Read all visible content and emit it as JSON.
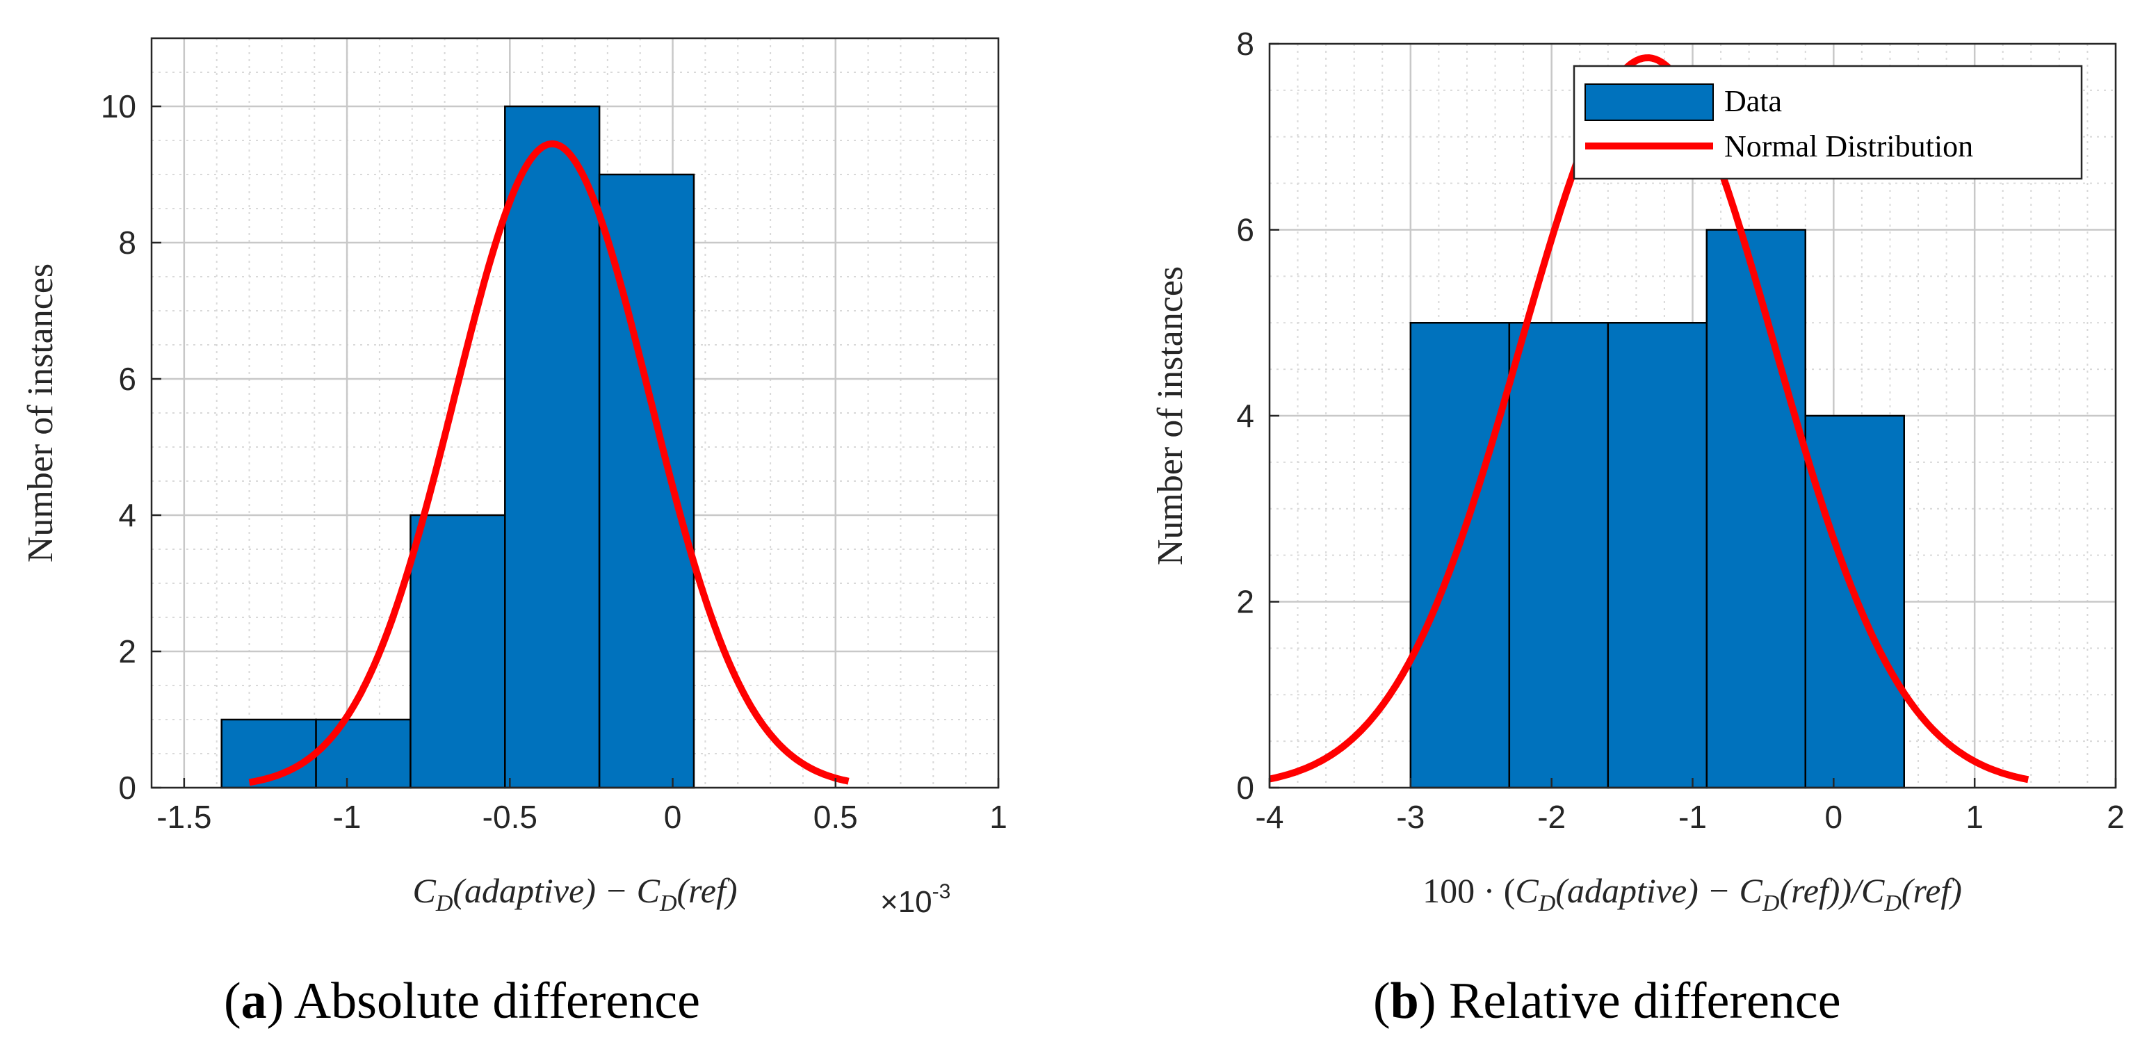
{
  "chart_data": [
    {
      "type": "histogram",
      "ylabel": "Number of instances",
      "xlabel": "C_D(adaptive) − C_D(ref)",
      "x_multiplier": "×10",
      "x_multiplier_exp": "-3",
      "xlim": [
        -1.6,
        1.0
      ],
      "ylim": [
        0,
        11
      ],
      "xticks": [
        -1.5,
        -1,
        -0.5,
        0,
        0.5,
        1
      ],
      "xtick_labels": [
        "-1.5",
        "-1",
        "-0.5",
        "0",
        "0.5",
        "1"
      ],
      "yticks": [
        0,
        2,
        4,
        6,
        8,
        10
      ],
      "ytick_labels": [
        "0",
        "2",
        "4",
        "6",
        "8",
        "10"
      ],
      "bin_edges": [
        -1.385,
        -1.095,
        -0.805,
        -0.515,
        -0.225,
        0.065
      ],
      "counts": [
        1,
        1,
        4,
        10,
        9
      ],
      "normal_fit": {
        "mean": -0.37,
        "std": 0.3,
        "peak": 9.45,
        "x_range": [
          -1.3,
          0.54
        ]
      },
      "grid": true,
      "colors": {
        "bar": "#0072BD",
        "fit": "#FF0000"
      },
      "caption": {
        "label": "a",
        "text": " Absolute difference"
      }
    },
    {
      "type": "histogram",
      "ylabel": "Number of instances",
      "xlabel": "100 · (C_D(adaptive) − C_D(ref))/C_D(ref)",
      "xlim": [
        -4,
        2
      ],
      "ylim": [
        0,
        8
      ],
      "xticks": [
        -4,
        -3,
        -2,
        -1,
        0,
        1,
        2
      ],
      "xtick_labels": [
        "-4",
        "-3",
        "-2",
        "-1",
        "0",
        "1",
        "2"
      ],
      "yticks": [
        0,
        2,
        4,
        6,
        8
      ],
      "ytick_labels": [
        "0",
        "2",
        "4",
        "6",
        "8"
      ],
      "bin_edges": [
        -3.0,
        -2.3,
        -1.6,
        -0.9,
        -0.2,
        0.5
      ],
      "counts": [
        5,
        5,
        5,
        6,
        4
      ],
      "normal_fit": {
        "mean": -1.32,
        "std": 0.9,
        "peak": 7.85,
        "x_range": [
          -4.0,
          1.38
        ]
      },
      "grid": true,
      "legend": {
        "placement": "top-right",
        "entries": [
          "Data",
          "Normal Distribution"
        ]
      },
      "colors": {
        "bar": "#0072BD",
        "fit": "#FF0000"
      },
      "caption": {
        "label": "b",
        "text": " Relative difference"
      }
    }
  ]
}
